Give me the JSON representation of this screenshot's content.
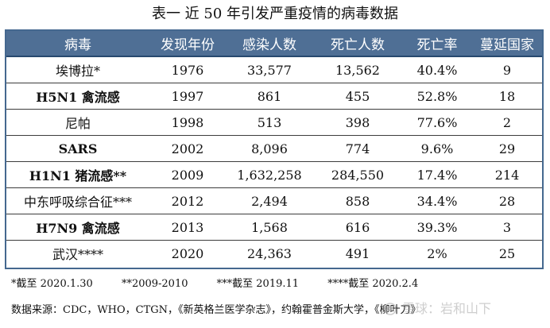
{
  "title": "表一 近 50 年引发严重疫情的病毒数据",
  "table": {
    "headers": [
      "病毒",
      "发现年份",
      "感染人数",
      "死亡人数",
      "死亡率",
      "蔓延国家"
    ],
    "rows": [
      [
        "埃博拉*",
        "1976",
        "33,577",
        "13,562",
        "40.4%",
        "9"
      ],
      [
        "H5N1 禽流感",
        "1997",
        "861",
        "455",
        "52.8%",
        "18"
      ],
      [
        "尼帕",
        "1998",
        "513",
        "398",
        "77.6%",
        "2"
      ],
      [
        "SARS",
        "2002",
        "8,096",
        "774",
        "9.6%",
        "29"
      ],
      [
        "H1N1 猪流感**",
        "2009",
        "1,632,258",
        "284,550",
        "17.4%",
        "214"
      ],
      [
        "中东呼吸综合征***",
        "2012",
        "2,494",
        "858",
        "34.4%",
        "28"
      ],
      [
        "H7N9 禽流感",
        "2013",
        "1,568",
        "616",
        "39.3%",
        "3"
      ],
      [
        "武汉****",
        "2020",
        "24,363",
        "491",
        "2%",
        "25"
      ]
    ],
    "bold_virus_names": [
      "H5N1 禽流感",
      "SARS",
      "H1N1 猪流感**",
      "H7N9 禽流感"
    ]
  },
  "footnotes": [
    "*截至 2020.1.30",
    "**2009-2010",
    "***截至 2019.11",
    "****截至 2020.2.4"
  ],
  "source": "数据来源：CDC，WHO，CTGN，《新英格兰医学杂志》，约翰霍普金斯大学，《柳叶刀》",
  "watermark": {
    "text": "雪球：岩和山下",
    "icon": "snowball-icon"
  },
  "colors": {
    "header_bg": "#4f6f95",
    "header_text": "#ffffff",
    "table_border": "#45688f",
    "row_line": "#3c3c3c",
    "watermark": "#a5a5a5"
  }
}
